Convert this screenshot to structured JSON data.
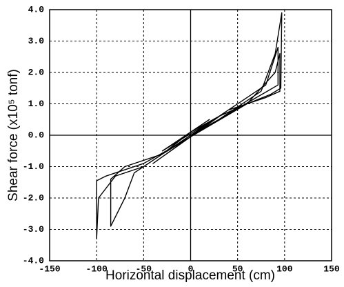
{
  "chart_data": {
    "type": "line",
    "xlabel": "Horizontal displacement (cm)",
    "ylabel": "Shear force (x10⁵ tonf)",
    "xlim": [
      -150,
      150
    ],
    "xticks": [
      -150,
      -100,
      -50,
      0,
      50,
      100,
      150
    ],
    "ylim": [
      -4,
      4
    ],
    "yticks": [
      {
        "value": -4,
        "label": "-4.0"
      },
      {
        "value": -3,
        "label": "-3.0"
      },
      {
        "value": -2,
        "label": "-2.0"
      },
      {
        "value": -1,
        "label": "-1.0"
      },
      {
        "value": 0,
        "label": "0.0"
      },
      {
        "value": 1,
        "label": "1.0"
      },
      {
        "value": 2,
        "label": "2.0"
      },
      {
        "value": 3,
        "label": "3.0"
      },
      {
        "value": 4,
        "label": "4.0"
      }
    ],
    "grid": true,
    "color": "#000000",
    "series": [
      {
        "name": null,
        "color": "#000000",
        "x": [
          0,
          30,
          60,
          75,
          90,
          97,
          96,
          85,
          60,
          20,
          -20,
          -50,
          -70,
          -90,
          -100,
          -100,
          -98,
          -80,
          -50,
          -20,
          20,
          60,
          80,
          93,
          93,
          70,
          30,
          -30,
          -70,
          -85,
          -85,
          -70,
          -60,
          -30,
          0,
          30,
          60,
          90,
          95,
          95,
          80,
          40,
          -40,
          30,
          -30,
          20,
          -20,
          10,
          -10,
          0
        ],
        "values": [
          0,
          0.5,
          1.1,
          1.4,
          2.6,
          3.9,
          1.5,
          1.3,
          1.0,
          0.3,
          -0.4,
          -0.9,
          -1.1,
          -1.3,
          -1.45,
          -3.3,
          -2.0,
          -1.3,
          -1.0,
          -0.4,
          0.4,
          1.2,
          1.6,
          2.8,
          1.6,
          1.2,
          0.5,
          -0.6,
          -1.0,
          -1.4,
          -2.9,
          -2.0,
          -1.2,
          -0.6,
          0.1,
          0.6,
          1.0,
          2.0,
          2.6,
          1.4,
          1.2,
          0.8,
          -0.9,
          0.6,
          -0.5,
          0.5,
          -0.3,
          0.3,
          -0.1,
          0.1
        ]
      }
    ]
  }
}
